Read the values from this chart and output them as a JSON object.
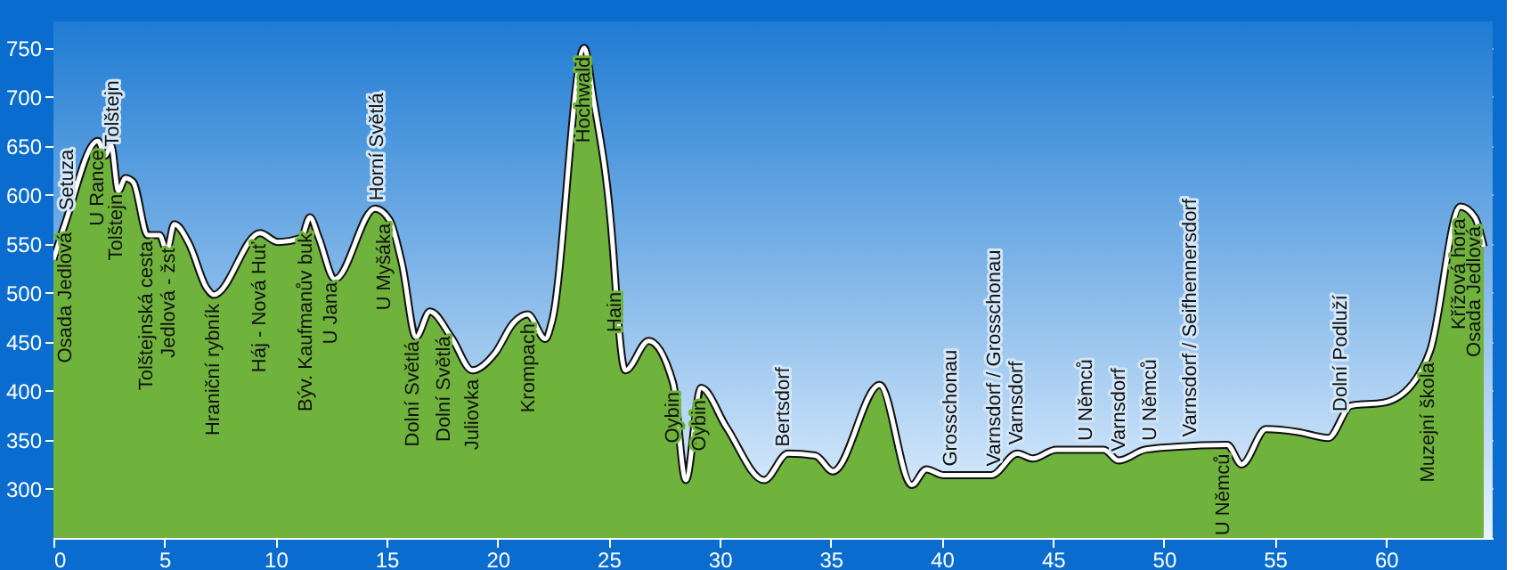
{
  "chart_data": {
    "type": "area",
    "x": [
      0,
      0.53,
      2.0,
      2.33,
      2.6,
      2.92,
      3.24,
      3.59,
      4.25,
      4.78,
      5.1,
      5.44,
      6.11,
      6.9,
      7.22,
      9.3,
      10.1,
      11.15,
      11.55,
      11.95,
      12.67,
      14.48,
      15.14,
      15.7,
      16.33,
      16.95,
      17.93,
      18.86,
      19.9,
      20.7,
      21.35,
      22.15,
      22.45,
      23.9,
      24.3,
      25.23,
      25.34,
      25.75,
      26.8,
      27.9,
      28.47,
      29.16,
      30.3,
      32.0,
      33.07,
      34.3,
      35.1,
      37.2,
      38.65,
      39.3,
      40.08,
      42.23,
      43.4,
      44.1,
      45.15,
      47.3,
      47.95,
      49.15,
      50.5,
      52.85,
      53.5,
      54.6,
      56.04,
      57.4,
      58.43,
      59.9,
      61.35,
      62.0,
      63.35,
      64.0,
      64.4
    ],
    "series": [
      {
        "color": "#6fb23c",
        "values": [
          534,
          571,
          655,
          640,
          650,
          604,
          617,
          613,
          559,
          559,
          543,
          570,
          550,
          505,
          498,
          561,
          552,
          556,
          577,
          556,
          514,
          586,
          574,
          529,
          455,
          481,
          454,
          421,
          439,
          469,
          478,
          453,
          471,
          750,
          700,
          534,
          498,
          421,
          451,
          408,
          309,
          403,
          363,
          309,
          336,
          334,
          318,
          406,
          304,
          320,
          314,
          314,
          336,
          331,
          340,
          340,
          329,
          340,
          343,
          345,
          325,
          361,
          358,
          352,
          385,
          388,
          412,
          442,
          588,
          577,
          547
        ]
      }
    ],
    "xlim": [
      0,
      64.8
    ],
    "ylim": [
      250,
      777
    ],
    "xticks": [
      0,
      5,
      10,
      15,
      20,
      25,
      30,
      35,
      40,
      45,
      50,
      55,
      60
    ],
    "yticks": [
      300,
      350,
      400,
      450,
      500,
      550,
      600,
      650,
      700,
      750
    ],
    "grid": true,
    "annotations": [
      {
        "text": "Osada Jedlová",
        "x": 0.55,
        "y": 571
      },
      {
        "text": "Setuza",
        "x": 0.65,
        "y": 575
      },
      {
        "text": "U Rance",
        "x": 2.0,
        "y": 655
      },
      {
        "text": "Tolštejn",
        "x": 2.7,
        "y": 640
      },
      {
        "text": "Tolštejn",
        "x": 2.85,
        "y": 610
      },
      {
        "text": "Tolštejnská cesta",
        "x": 4.2,
        "y": 562
      },
      {
        "text": "Jedlová - žst",
        "x": 5.2,
        "y": 555
      },
      {
        "text": "Hraniční rybník",
        "x": 7.2,
        "y": 498
      },
      {
        "text": "Háj - Nová Huť",
        "x": 9.3,
        "y": 561
      },
      {
        "text": "Býv. Kaufmanův buk",
        "x": 11.4,
        "y": 570
      },
      {
        "text": "U Jana",
        "x": 12.5,
        "y": 520
      },
      {
        "text": "Horní Světlá",
        "x": 14.6,
        "y": 585
      },
      {
        "text": "U Myšáka",
        "x": 14.9,
        "y": 580
      },
      {
        "text": "Dolní Světlá",
        "x": 16.2,
        "y": 460
      },
      {
        "text": "Dolní Světlá",
        "x": 17.6,
        "y": 465
      },
      {
        "text": "Juliovka",
        "x": 18.9,
        "y": 421
      },
      {
        "text": "Krompach",
        "x": 21.4,
        "y": 478
      },
      {
        "text": "Hochwald",
        "x": 23.9,
        "y": 750
      },
      {
        "text": "Hain",
        "x": 25.3,
        "y": 510
      },
      {
        "text": "Oybin",
        "x": 27.9,
        "y": 408
      },
      {
        "text": "Oybin",
        "x": 29.1,
        "y": 400
      },
      {
        "text": "Bertsdorf",
        "x": 32.9,
        "y": 334
      },
      {
        "text": "Grosschonau",
        "x": 40.4,
        "y": 314
      },
      {
        "text": "Varnsdorf / Grosschonau",
        "x": 42.4,
        "y": 314
      },
      {
        "text": "Varnsdorf",
        "x": 43.4,
        "y": 336
      },
      {
        "text": "U Němců",
        "x": 46.5,
        "y": 340
      },
      {
        "text": "Varnsdorf",
        "x": 48.0,
        "y": 329
      },
      {
        "text": "U Němců",
        "x": 49.4,
        "y": 340
      },
      {
        "text": "Varnsdorf / Seifhennersdorf",
        "x": 51.2,
        "y": 344
      },
      {
        "text": "U Němců",
        "x": 52.7,
        "y": 345
      },
      {
        "text": "Dolní Podluží",
        "x": 58.0,
        "y": 370
      },
      {
        "text": "Muzejní škola",
        "x": 61.9,
        "y": 438
      },
      {
        "text": "Křížová hora",
        "x": 63.3,
        "y": 585
      },
      {
        "text": "Osada Jedlová",
        "x": 64.0,
        "y": 577
      }
    ]
  }
}
